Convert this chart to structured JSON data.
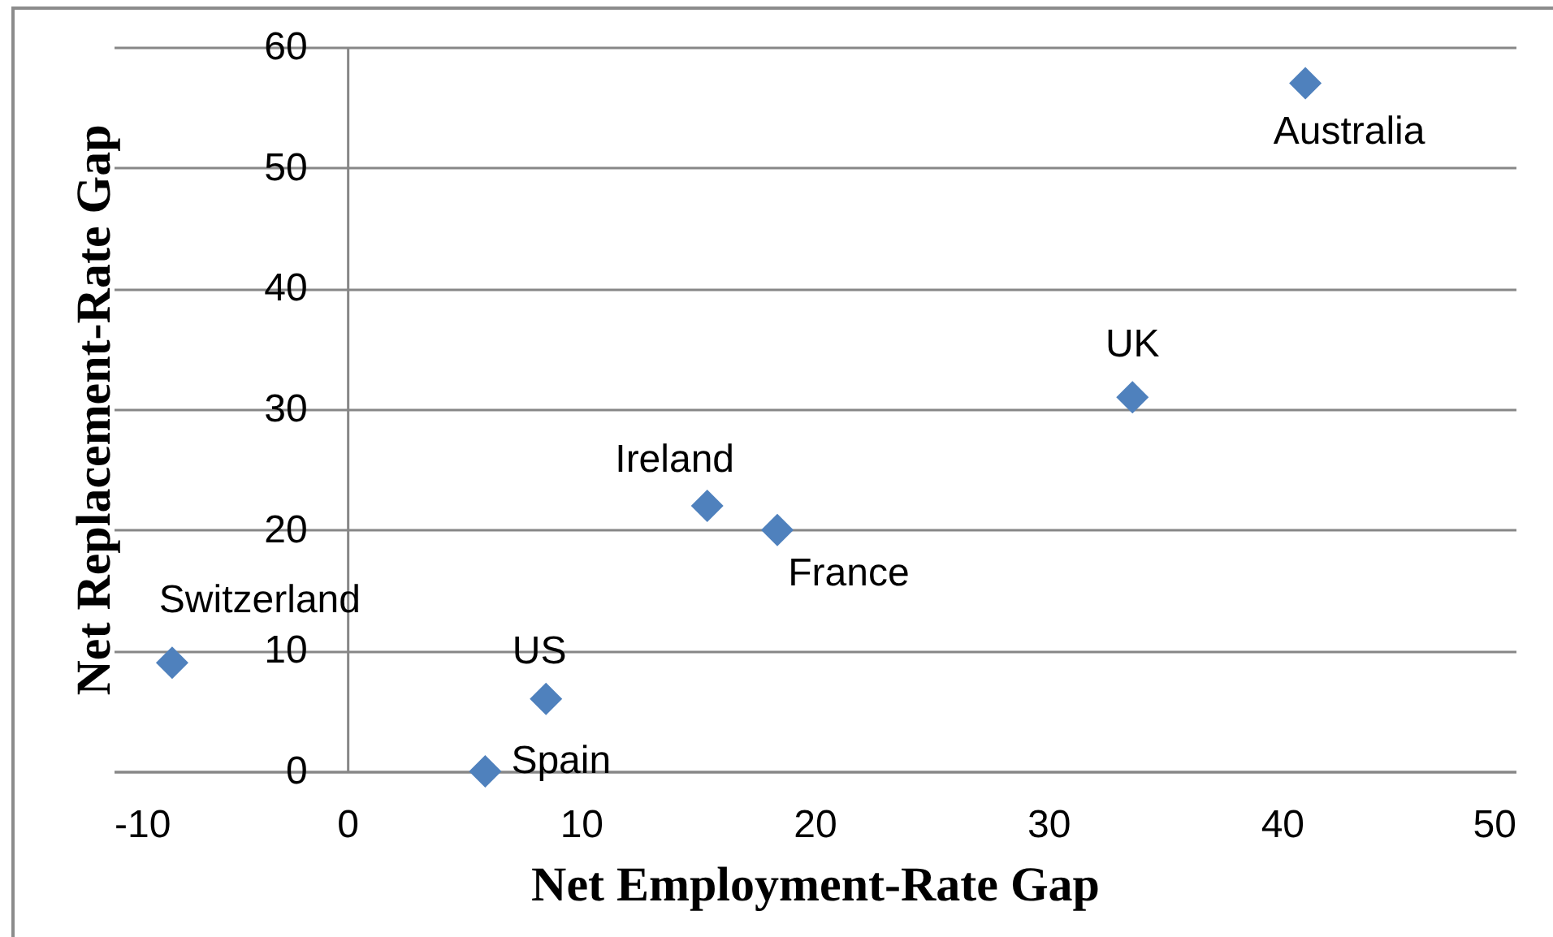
{
  "chart_data": {
    "type": "scatter",
    "xlabel": "Net Employment-Rate Gap",
    "ylabel": "Net Replacement-Rate Gap",
    "x": [
      -7.5,
      5.9,
      8.5,
      15.4,
      18.4,
      33.6,
      41.0
    ],
    "series": [
      {
        "color": "#4f81bd",
        "values": [
          9,
          0,
          6,
          22,
          20,
          31,
          57
        ]
      }
    ],
    "xlim": [
      -10,
      50
    ],
    "ylim": [
      0,
      60
    ],
    "xticks": [
      -10,
      0,
      10,
      20,
      30,
      40,
      50
    ],
    "yticks": [
      0,
      10,
      20,
      30,
      40,
      50,
      60
    ],
    "grid": "y",
    "marker": "diamond",
    "annotations": [
      {
        "text": "Switzerland",
        "x": -7.5,
        "y": 9
      },
      {
        "text": "Spain",
        "x": 5.9,
        "y": 0
      },
      {
        "text": "US",
        "x": 8.5,
        "y": 6
      },
      {
        "text": "Ireland",
        "x": 15.4,
        "y": 22
      },
      {
        "text": "France",
        "x": 18.4,
        "y": 20
      },
      {
        "text": "UK",
        "x": 33.6,
        "y": 31
      },
      {
        "text": "Australia",
        "x": 41.0,
        "y": 57
      }
    ]
  }
}
